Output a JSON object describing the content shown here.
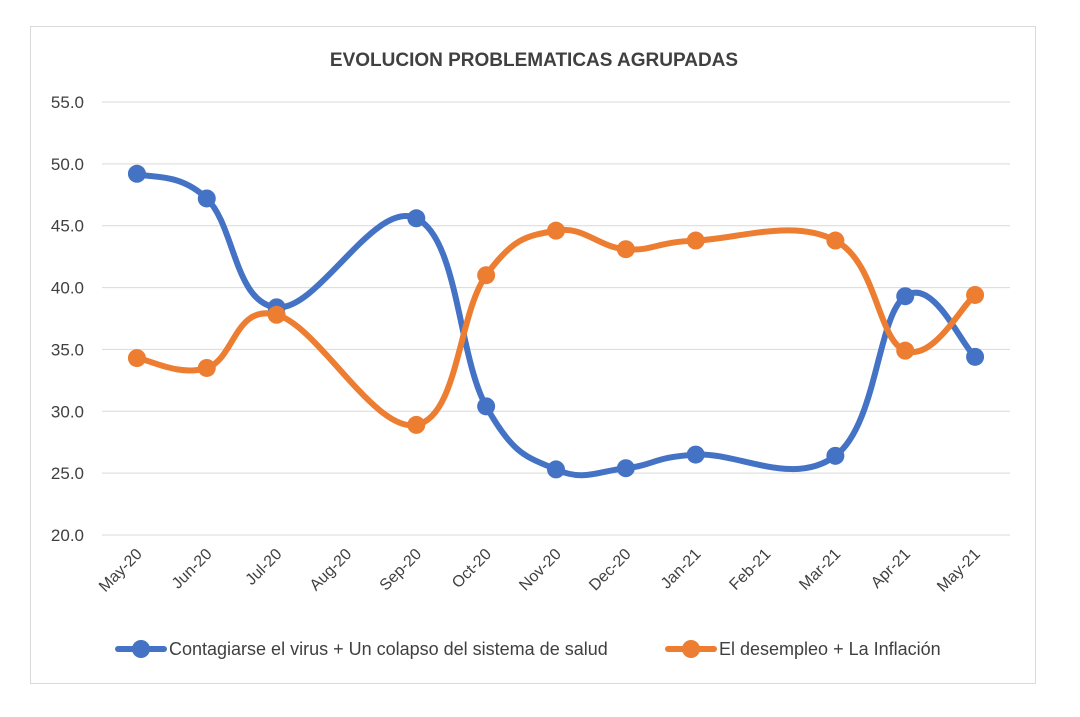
{
  "chart_data": {
    "type": "line",
    "title": "EVOLUCION PROBLEMATICAS AGRUPADAS",
    "categories": [
      "May-20",
      "Jun-20",
      "Jul-20",
      "Aug-20",
      "Sep-20",
      "Oct-20",
      "Nov-20",
      "Dec-20",
      "Jan-21",
      "Feb-21",
      "Mar-21",
      "Apr-21",
      "May-21"
    ],
    "ylim": [
      20,
      55
    ],
    "yticks": [
      "20.0",
      "25.0",
      "30.0",
      "35.0",
      "40.0",
      "45.0",
      "50.0",
      "55.0"
    ],
    "grid": true,
    "legend_position": "bottom",
    "smooth": true,
    "series": [
      {
        "name": "Contagiarse el virus + Un colapso del sistema de salud",
        "color": "#4472C4",
        "values": [
          49.2,
          47.2,
          38.4,
          null,
          45.6,
          30.4,
          25.3,
          25.4,
          26.5,
          null,
          26.4,
          39.3,
          34.4
        ]
      },
      {
        "name": "El desempleo + La Inflación",
        "color": "#ED7D31",
        "values": [
          34.3,
          33.5,
          37.8,
          null,
          28.9,
          41.0,
          44.6,
          43.1,
          43.8,
          null,
          43.8,
          34.9,
          39.4
        ]
      }
    ]
  }
}
